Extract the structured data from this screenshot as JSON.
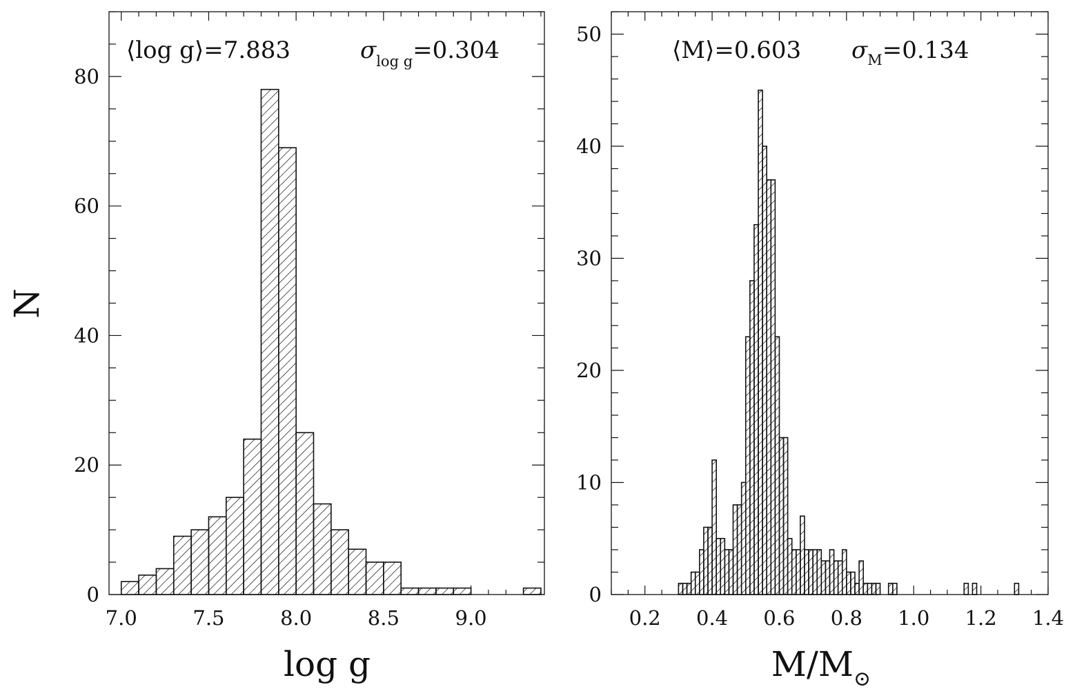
{
  "chart_data": [
    {
      "type": "histogram",
      "xlabel": "log g",
      "ylabel": "N",
      "xlim": [
        6.93,
        9.42
      ],
      "ylim": [
        0,
        90
      ],
      "xticks_major": [
        7.0,
        7.5,
        8.0,
        8.5,
        9.0
      ],
      "xtick_labels": [
        "7.0",
        "7.5",
        "8.0",
        "8.5",
        "9.0"
      ],
      "xticks_minor_step": 0.1,
      "yticks_major": [
        0,
        20,
        40,
        60,
        80
      ],
      "ytick_labels": [
        "0",
        "20",
        "40",
        "60",
        "80"
      ],
      "yticks_minor_step": 5,
      "bin_width": 0.1,
      "bin_starts": [
        7.0,
        7.1,
        7.2,
        7.3,
        7.4,
        7.5,
        7.6,
        7.7,
        7.8,
        7.9,
        8.0,
        8.1,
        8.2,
        8.3,
        8.4,
        8.5,
        8.6,
        8.7,
        8.8,
        8.9,
        9.0,
        9.1,
        9.2,
        9.3
      ],
      "counts": [
        2,
        3,
        4,
        9,
        10,
        12,
        15,
        24,
        78,
        69,
        25,
        14,
        10,
        7,
        5,
        5,
        1,
        1,
        1,
        1,
        0,
        0,
        0,
        1
      ],
      "stats": {
        "mean_label": "⟨log  g⟩=7.883",
        "sigma_symbol": "σ",
        "sigma_subscript": "log  g",
        "sigma_value": "=0.304"
      },
      "fill": "diagonal hatch",
      "grid": false
    },
    {
      "type": "histogram",
      "xlabel": "M/M",
      "xlabel_sub": "⊙",
      "ylabel": "",
      "xlim": [
        0.1,
        1.4
      ],
      "ylim": [
        0,
        52
      ],
      "xticks_major": [
        0.2,
        0.4,
        0.6,
        0.8,
        1.0,
        1.2,
        1.4
      ],
      "xtick_labels": [
        "0.2",
        "0.4",
        "0.6",
        "0.8",
        "1.0",
        "1.2",
        "1.4"
      ],
      "xticks_minor_step": 0.05,
      "yticks_major": [
        0,
        10,
        20,
        30,
        40,
        50
      ],
      "ytick_labels": [
        "0",
        "10",
        "20",
        "30",
        "40",
        "50"
      ],
      "yticks_minor_step": 2,
      "bin_width": 0.0125,
      "bin_starts": [
        0.3,
        0.3125,
        0.325,
        0.3375,
        0.35,
        0.3625,
        0.375,
        0.3875,
        0.4,
        0.4125,
        0.425,
        0.4375,
        0.45,
        0.4625,
        0.475,
        0.4875,
        0.5,
        0.5125,
        0.525,
        0.5375,
        0.55,
        0.5625,
        0.575,
        0.5875,
        0.6,
        0.6125,
        0.625,
        0.6375,
        0.65,
        0.6625,
        0.675,
        0.6875,
        0.7,
        0.7125,
        0.725,
        0.7375,
        0.75,
        0.7625,
        0.775,
        0.7875,
        0.8,
        0.8125,
        0.825,
        0.8375,
        0.85,
        0.8625,
        0.875,
        0.8875,
        0.9,
        0.9125,
        0.925,
        0.9375,
        0.95,
        0.9625,
        0.975,
        0.9875,
        1.0,
        1.0125,
        1.025,
        1.0375,
        1.05,
        1.0625,
        1.075,
        1.0875,
        1.1,
        1.1125,
        1.125,
        1.1375,
        1.15,
        1.1625,
        1.175,
        1.1875,
        1.2,
        1.2125,
        1.225,
        1.2375,
        1.25,
        1.2625,
        1.275,
        1.2875,
        1.3,
        1.3125
      ],
      "counts": [
        1,
        1,
        1,
        2,
        2,
        4,
        6,
        6,
        12,
        5,
        5,
        4,
        4,
        8,
        8,
        10,
        23,
        28,
        33,
        45,
        40,
        37,
        37,
        23,
        14,
        14,
        5,
        4,
        4,
        7,
        4,
        4,
        4,
        4,
        3,
        3,
        4,
        3,
        3,
        4,
        2,
        2,
        1,
        3,
        1,
        1,
        1,
        1,
        0,
        0,
        1,
        1,
        0,
        0,
        0,
        0,
        0,
        0,
        0,
        0,
        0,
        0,
        0,
        0,
        0,
        0,
        0,
        0,
        1,
        0,
        1,
        0,
        0,
        0,
        0,
        0,
        0,
        0,
        0,
        0,
        1,
        0
      ],
      "stats": {
        "mean_label": "⟨M⟩=0.603",
        "sigma_symbol": "σ",
        "sigma_subscript": "M",
        "sigma_value": "=0.134"
      },
      "fill": "diagonal hatch",
      "grid": false
    }
  ]
}
